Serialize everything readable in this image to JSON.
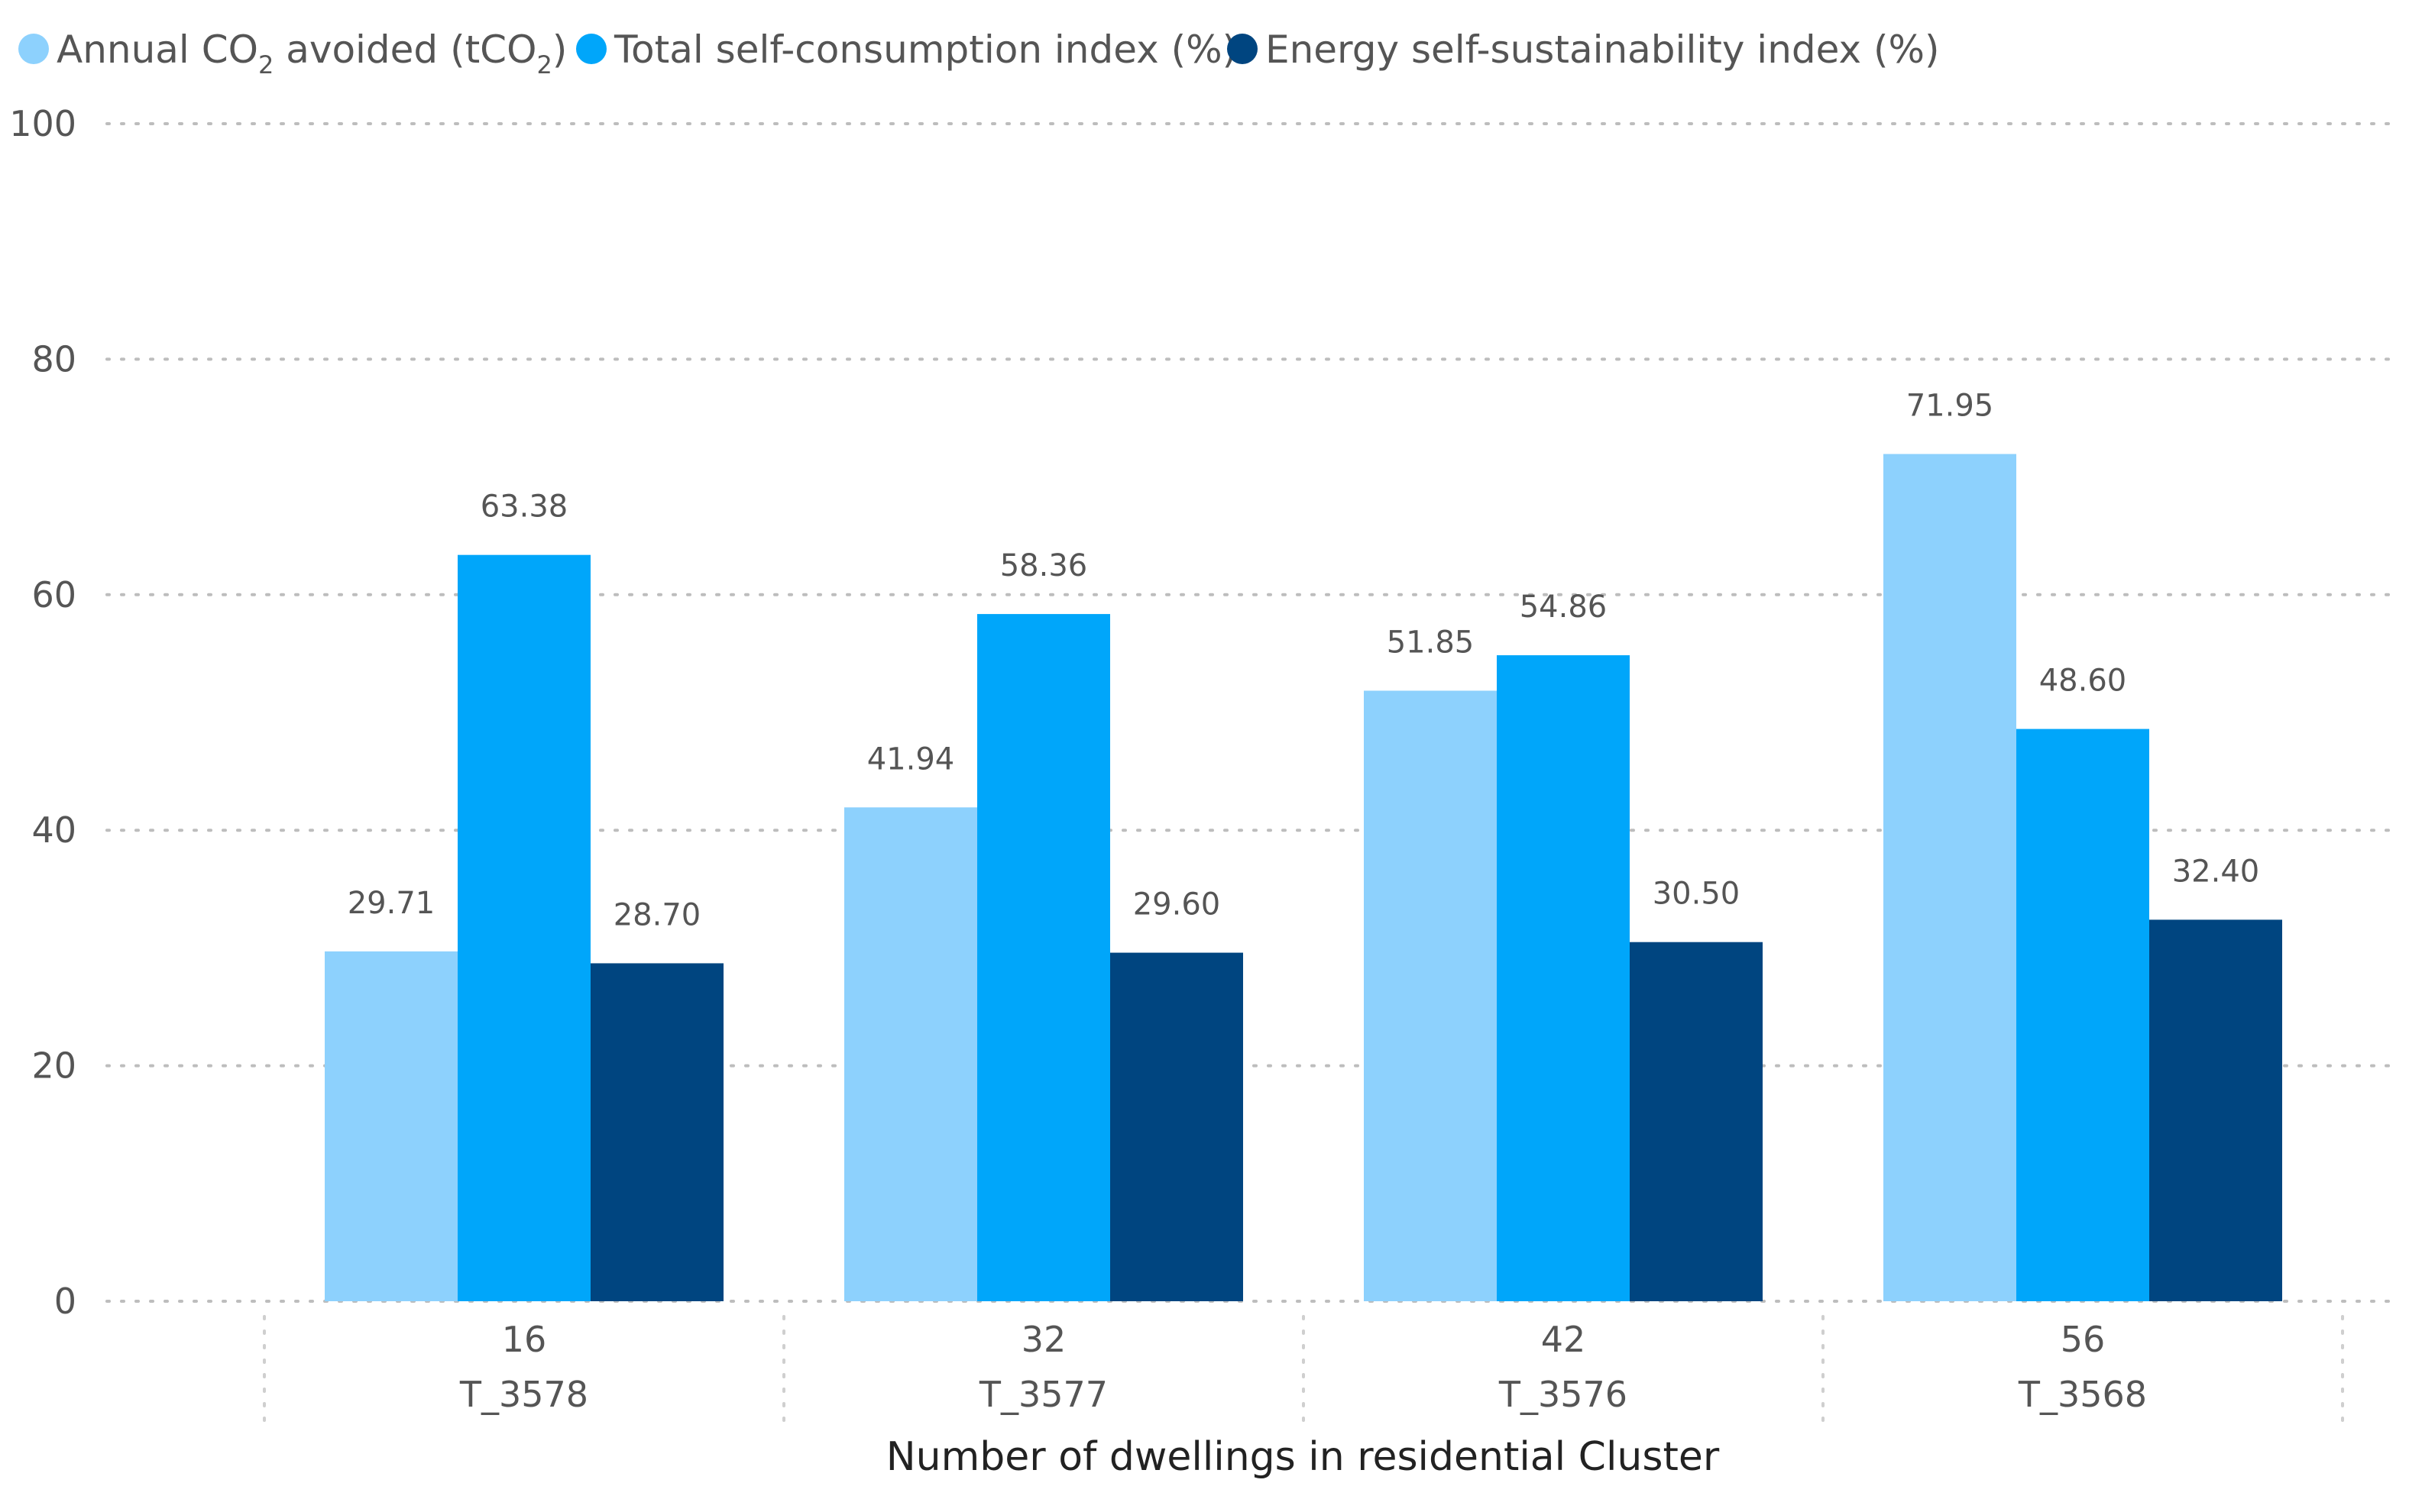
{
  "chart_data": {
    "type": "bar",
    "title": "",
    "xlabel": "Number of dwellings in residential Cluster",
    "ylabel": "",
    "ylim": [
      0,
      100
    ],
    "yticks": [
      0,
      20,
      40,
      60,
      80,
      100
    ],
    "grid": true,
    "legend_position": "top-left",
    "categories": [
      {
        "dwellings": "16",
        "cluster": "T_3578"
      },
      {
        "dwellings": "32",
        "cluster": "T_3577"
      },
      {
        "dwellings": "42",
        "cluster": "T_3576"
      },
      {
        "dwellings": "56",
        "cluster": "T_3568"
      }
    ],
    "series": [
      {
        "name": "Annual CO2 avoided (tCO2)",
        "legend_parts": [
          "Annual CO",
          "2",
          " avoided (tCO",
          "2",
          ")"
        ],
        "color": "#8dd1fd",
        "values": [
          29.71,
          41.94,
          51.85,
          71.95
        ],
        "labels": [
          "29.71",
          "41.94",
          "51.85",
          "71.95"
        ]
      },
      {
        "name": "Total self-consumption index (%)",
        "legend_parts": [
          "Total self-consumption index (%)"
        ],
        "color": "#00a6fa",
        "values": [
          63.38,
          58.36,
          54.86,
          48.6
        ],
        "labels": [
          "63.38",
          "58.36",
          "54.86",
          "48.60"
        ]
      },
      {
        "name": "Energy self-sustainability index (%)",
        "legend_parts": [
          "Energy self-sustainability index (%)"
        ],
        "color": "#004580",
        "values": [
          28.7,
          29.6,
          30.5,
          32.4
        ],
        "labels": [
          "28.70",
          "29.60",
          "30.50",
          "32.40"
        ]
      }
    ]
  }
}
